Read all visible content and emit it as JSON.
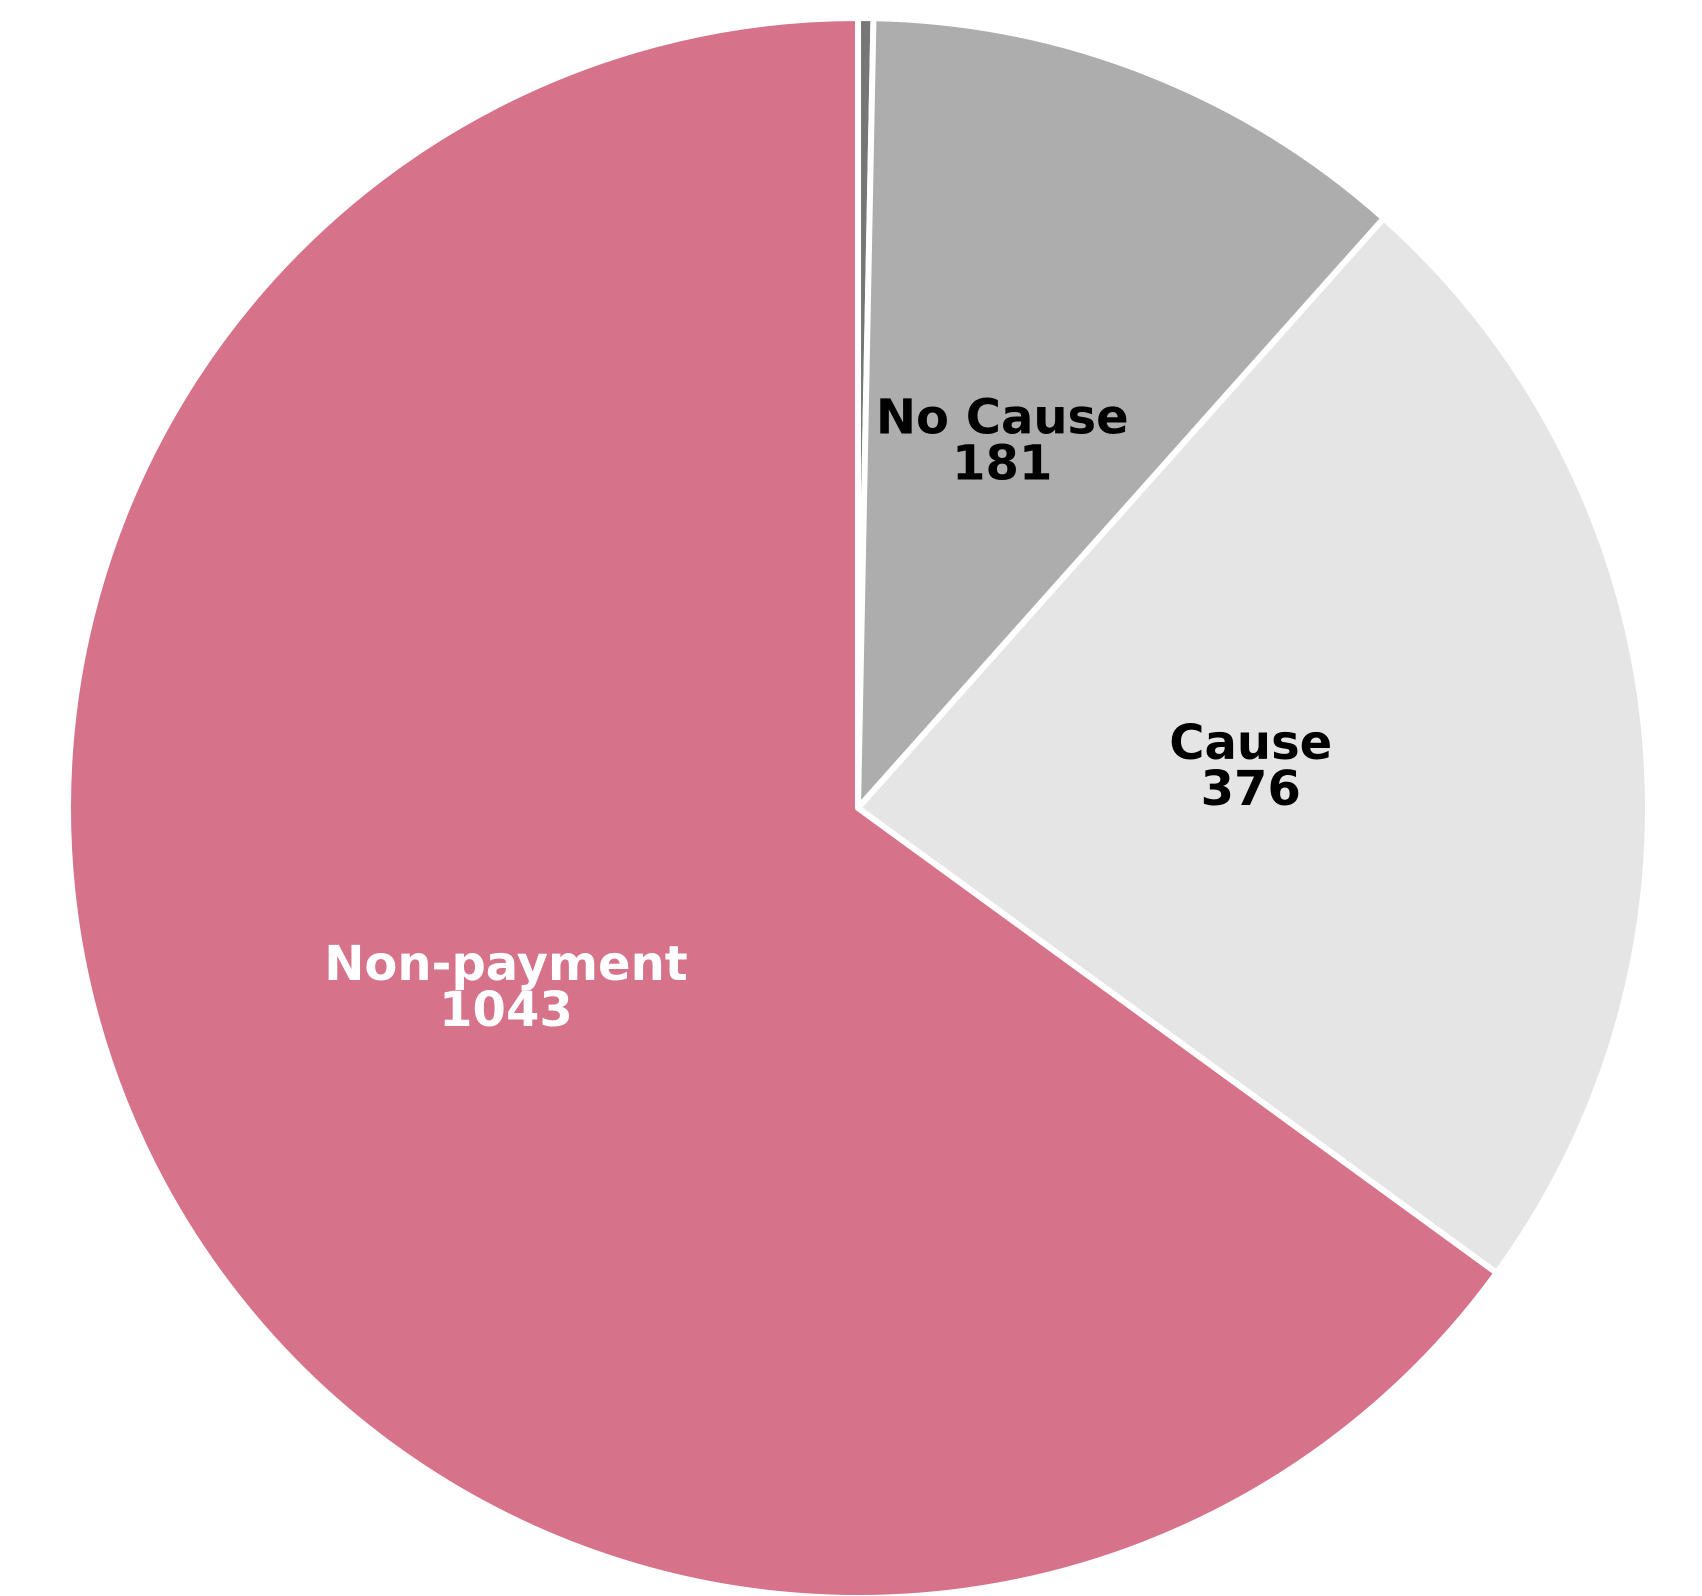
{
  "chart_data": {
    "type": "pie",
    "title": "",
    "start_angle_deg": 0,
    "direction": "clockwise",
    "slices": [
      {
        "label": "",
        "value": 5,
        "color": "#777777",
        "text_color": "#000000"
      },
      {
        "label": "No Cause",
        "value": 181,
        "color": "#adadad",
        "text_color": "#000000"
      },
      {
        "label": "Cause",
        "value": 376,
        "color": "#e5e5e5",
        "text_color": "#000000"
      },
      {
        "label": "Non-payment",
        "value": 1043,
        "color": "#d6728a",
        "text_color": "#ffffff"
      }
    ]
  }
}
